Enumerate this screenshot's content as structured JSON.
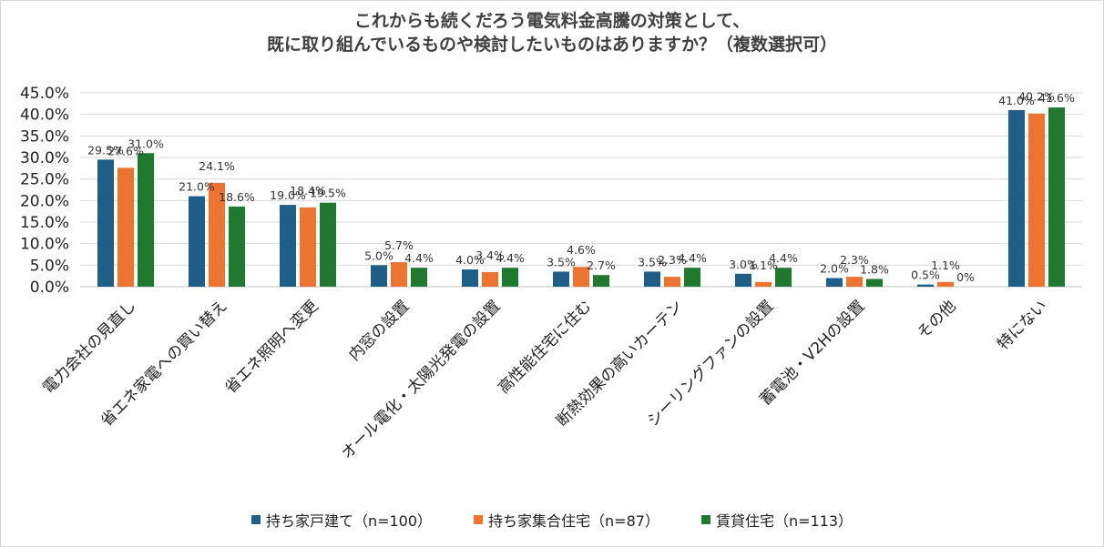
{
  "chart_data": {
    "type": "bar",
    "title": "これからも続くだろう電気料金高騰の対策として、",
    "subtitle": "既に取り組んでいるものや検討したいものはありますか？（複数選択可）",
    "categories": [
      "電力会社の見直し",
      "省エネ家電への買い替え",
      "省エネ照明へ変更",
      "内窓の設置",
      "オール電化・太陽光発電の設置",
      "高性能住宅に住む",
      "断熱効果の高いカーテン",
      "シーリングファンの設置",
      "蓄電池・V2Hの設置",
      "その他",
      "特にない"
    ],
    "yticks": [
      "0.0%",
      "5.0%",
      "10.0%",
      "15.0%",
      "20.0%",
      "25.0%",
      "30.0%",
      "35.0%",
      "40.0%",
      "45.0%"
    ],
    "ylim": [
      0,
      45
    ],
    "xlabel": "",
    "ylabel": "",
    "series": [
      {
        "name": "持ち家戸建て（n=100）",
        "color": "#1f5f87",
        "values": [
          29.5,
          21.0,
          19.0,
          5.0,
          4.0,
          3.5,
          3.5,
          3.0,
          2.0,
          0.5,
          41.0
        ],
        "labels": [
          "29.5%",
          "21.0%",
          "19.0%",
          "5.0%",
          "4.0%",
          "3.5%",
          "3.5%",
          "3.0%",
          "2.0%",
          "0.5%",
          "41.0%"
        ]
      },
      {
        "name": "持ち家集合住宅（n=87）",
        "color": "#ed7331",
        "values": [
          27.6,
          24.1,
          18.4,
          5.7,
          3.4,
          4.6,
          2.3,
          1.1,
          2.3,
          1.1,
          40.2
        ],
        "labels": [
          "27.6%",
          "24.1%",
          "18.4%",
          "5.7%",
          "3.4%",
          "4.6%",
          "2.3%",
          "1.1%",
          "2.3%",
          "1.1%",
          "40.2%"
        ]
      },
      {
        "name": "賃貸住宅（n=113）",
        "color": "#1f7a30",
        "values": [
          31.0,
          18.6,
          19.5,
          4.4,
          4.4,
          2.7,
          4.4,
          4.4,
          1.8,
          0,
          41.6
        ],
        "labels": [
          "31.0%",
          "18.6%",
          "19.5%",
          "4.4%",
          "4.4%",
          "2.7%",
          "4.4%",
          "4.4%",
          "1.8%",
          "0%",
          "41.6%"
        ]
      }
    ],
    "grid": true,
    "legend": "bottom"
  }
}
